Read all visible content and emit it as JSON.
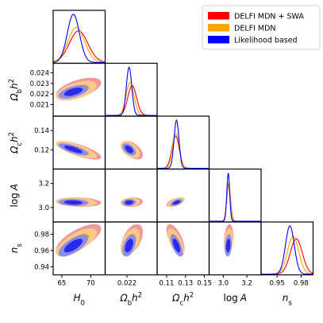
{
  "chart_data": {
    "type": "corner",
    "title": "",
    "parameters": [
      {
        "key": "H0",
        "label": "H",
        "sub": "0",
        "sup": "",
        "range": [
          63.5,
          72.5
        ],
        "ticks": [
          65,
          70
        ],
        "tick_labels": [
          "65",
          "70"
        ]
      },
      {
        "key": "Omega_b_h2",
        "label": "Ω",
        "sub": "b",
        "sup": "",
        "suffix": "h",
        "suffix_sup": "2",
        "range": [
          0.0199,
          0.0249
        ],
        "ticks": [
          0.021,
          0.022,
          0.023,
          0.024
        ],
        "tick_labels": [
          "0.021",
          "0.022",
          "0.023",
          "0.024"
        ],
        "x_ticks": [
          0.022
        ],
        "x_tick_labels": [
          "0.022"
        ]
      },
      {
        "key": "Omega_c_h2",
        "label": "Ω",
        "sub": "c",
        "sup": "",
        "suffix": "h",
        "suffix_sup": "2",
        "range": [
          0.1,
          0.155
        ],
        "ticks": [
          0.12,
          0.14
        ],
        "tick_labels": [
          "0.12",
          "0.14"
        ],
        "x_ticks": [
          0.11,
          0.13,
          0.15
        ],
        "x_tick_labels": [
          "0.11",
          "0.13",
          "0.15"
        ]
      },
      {
        "key": "logA",
        "label": "log",
        "sub": "",
        "sup": "",
        "suffix": "A",
        "range": [
          2.88,
          3.32
        ],
        "ticks": [
          3.0,
          3.2
        ],
        "tick_labels": [
          "3.0",
          "3.2"
        ],
        "x_ticks": [
          3.0,
          3.2
        ],
        "x_tick_labels": [
          "3.0",
          "3.2"
        ]
      },
      {
        "key": "n_s",
        "label": "n",
        "sub": "s",
        "sup": "",
        "range": [
          0.93,
          0.995
        ],
        "ticks": [
          0.94,
          0.96,
          0.98
        ],
        "tick_labels": [
          "0.94",
          "0.96",
          "0.98"
        ],
        "x_ticks": [
          0.95,
          0.98
        ],
        "x_tick_labels": [
          "0.95",
          "0.98"
        ]
      }
    ],
    "series": [
      {
        "name": "DELFI MDN + SWA",
        "color": "#ff0000",
        "fill_outer": "#ef9a9a",
        "fill_inner": "#e8575a",
        "mean": {
          "H0": 67.9,
          "Omega_b_h2": 0.0225,
          "Omega_c_h2": 0.1195,
          "logA": 3.045,
          "n_s": 0.974
        },
        "sigma": {
          "H0": 1.6,
          "Omega_b_h2": 0.00042,
          "Omega_c_h2": 0.0039,
          "logA": 0.016,
          "n_s": 0.0075
        }
      },
      {
        "name": "DELFI MDN",
        "color": "#ffa500",
        "fill_outer": "#f9c98b",
        "fill_inner": "#f5a33e",
        "mean": {
          "H0": 67.5,
          "Omega_b_h2": 0.0223,
          "Omega_c_h2": 0.12,
          "logA": 3.044,
          "n_s": 0.97
        },
        "sigma": {
          "H0": 1.45,
          "Omega_b_h2": 0.00038,
          "Omega_c_h2": 0.0036,
          "logA": 0.015,
          "n_s": 0.007
        }
      },
      {
        "name": "Likelihood based",
        "color": "#0000ff",
        "fill_outer": "#8b8bf0",
        "fill_inner": "#2a2ae8",
        "mean": {
          "H0": 67.0,
          "Omega_b_h2": 0.0222,
          "Omega_c_h2": 0.1205,
          "logA": 3.042,
          "n_s": 0.966
        },
        "sigma": {
          "H0": 1.05,
          "Omega_b_h2": 0.00026,
          "Omega_c_h2": 0.0026,
          "logA": 0.012,
          "n_s": 0.0055
        }
      }
    ],
    "correlations": {
      "Omega_b_h2|H0": 0.55,
      "Omega_c_h2|H0": -0.75,
      "Omega_c_h2|Omega_b_h2": -0.5,
      "logA|H0": -0.15,
      "logA|Omega_b_h2": 0.1,
      "logA|Omega_c_h2": 0.55,
      "n_s|H0": 0.7,
      "n_s|Omega_b_h2": 0.45,
      "n_s|Omega_c_h2": -0.65,
      "n_s|logA": 0.2
    },
    "legend_position": "top-right",
    "grid": false
  }
}
